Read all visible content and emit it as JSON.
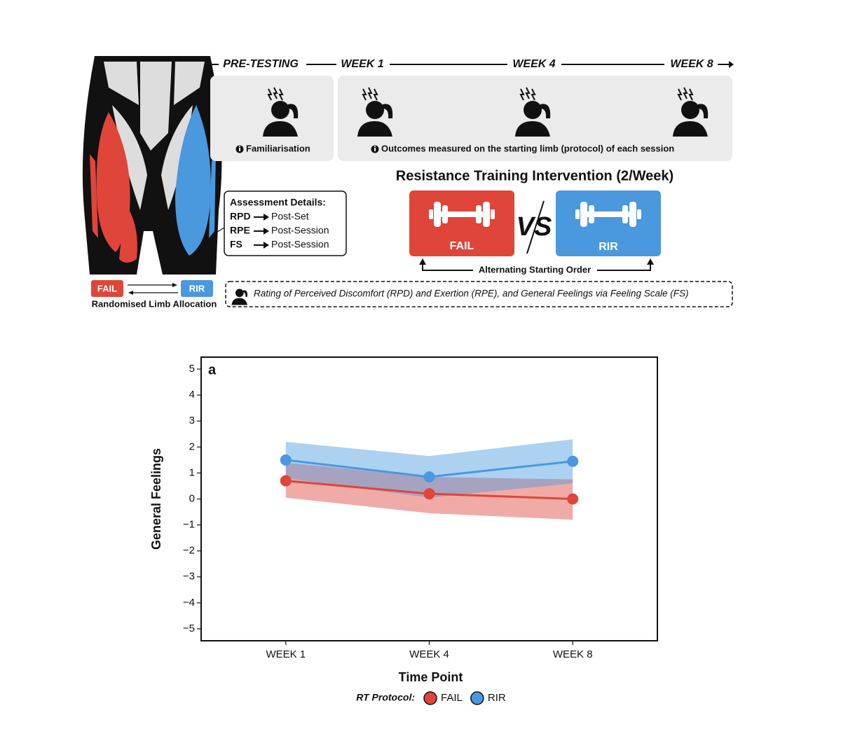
{
  "diagram": {
    "timeline": [
      "PRE-TESTING",
      "WEEK 1",
      "WEEK 4",
      "WEEK 8"
    ],
    "pretesting_note": "Familiarisation",
    "outcomes_note": "Outcomes measured on the starting limb (protocol) of each session",
    "intervention_title": "Resistance Training Intervention (2/Week)",
    "fail_label": "FAIL",
    "vs_label": "VS",
    "rir_label": "RIR",
    "order_note": "Alternating Starting Order",
    "assessment_title": "Assessment Details:",
    "assessment_rows": [
      {
        "measure": "RPD",
        "timing": "Post-Set"
      },
      {
        "measure": "RPE",
        "timing": "Post-Session"
      },
      {
        "measure": "FS",
        "timing": "Post-Session"
      }
    ],
    "limb_fail": "FAIL",
    "limb_rir": "RIR",
    "limb_note": "Randomised Limb Allocation",
    "rating_note": "Rating of Perceived Discomfort (RPD) and Exertion (RPE), and General Feelings via Feeling Scale (FS)"
  },
  "chart_data": {
    "type": "line",
    "panel_label": "a",
    "xlabel": "Time Point",
    "ylabel": "General Feelings",
    "categories": [
      "WEEK 1",
      "WEEK 4",
      "WEEK 8"
    ],
    "series": [
      {
        "name": "FAIL",
        "color": "#e0453a",
        "values": [
          0.7,
          0.2,
          0.0
        ],
        "lower": [
          0.05,
          -0.55,
          -0.8
        ],
        "upper": [
          1.4,
          0.85,
          0.75
        ]
      },
      {
        "name": "RIR",
        "color": "#4a98de",
        "values": [
          1.5,
          0.85,
          1.45
        ],
        "lower": [
          0.8,
          0.05,
          0.6
        ],
        "upper": [
          2.2,
          1.65,
          2.3
        ]
      }
    ],
    "ylim": [
      -5.46,
      5.46
    ],
    "yticks": [
      {
        "value": -5,
        "label": "−5"
      },
      {
        "value": -4,
        "label": "−4"
      },
      {
        "value": -3,
        "label": "−3"
      },
      {
        "value": -2,
        "label": "−2"
      },
      {
        "value": -1,
        "label": "−1"
      },
      0,
      1,
      2,
      3,
      4,
      5
    ],
    "legend_title": "RT Protocol:"
  }
}
